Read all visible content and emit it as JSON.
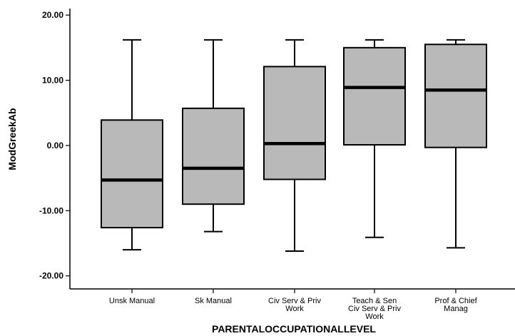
{
  "chart_data": {
    "type": "boxplot",
    "title": "",
    "xlabel": "PARENTALOCCUPATIONALLEVEL",
    "ylabel": "ModGreekAb",
    "ylim": [
      -22,
      21
    ],
    "yticks": [
      20,
      10,
      0,
      -10,
      -20
    ],
    "ytick_labels": [
      "20.00",
      "10.00",
      "0.00",
      "-10.00",
      "-20.00"
    ],
    "grid": false,
    "box_color": "#b9b9b9",
    "categories": [
      [
        "Unsk Manual"
      ],
      [
        "Sk Manual"
      ],
      [
        "Civ Serv & Priv",
        "Work"
      ],
      [
        "Teach & Sen",
        "Civ Serv & Priv",
        "Work"
      ],
      [
        "Prof & Chief",
        "Manag"
      ]
    ],
    "boxes": [
      {
        "min": -16.0,
        "q1": -12.6,
        "median": -5.3,
        "q3": 3.9,
        "max": 16.2
      },
      {
        "min": -13.2,
        "q1": -9.0,
        "median": -3.5,
        "q3": 5.7,
        "max": 16.2
      },
      {
        "min": -16.2,
        "q1": -5.2,
        "median": 0.3,
        "q3": 12.1,
        "max": 16.2
      },
      {
        "min": -14.1,
        "q1": 0.1,
        "median": 8.9,
        "q3": 15.0,
        "max": 16.2
      },
      {
        "min": -15.7,
        "q1": -0.3,
        "median": 8.5,
        "q3": 15.5,
        "max": 16.2
      }
    ]
  }
}
